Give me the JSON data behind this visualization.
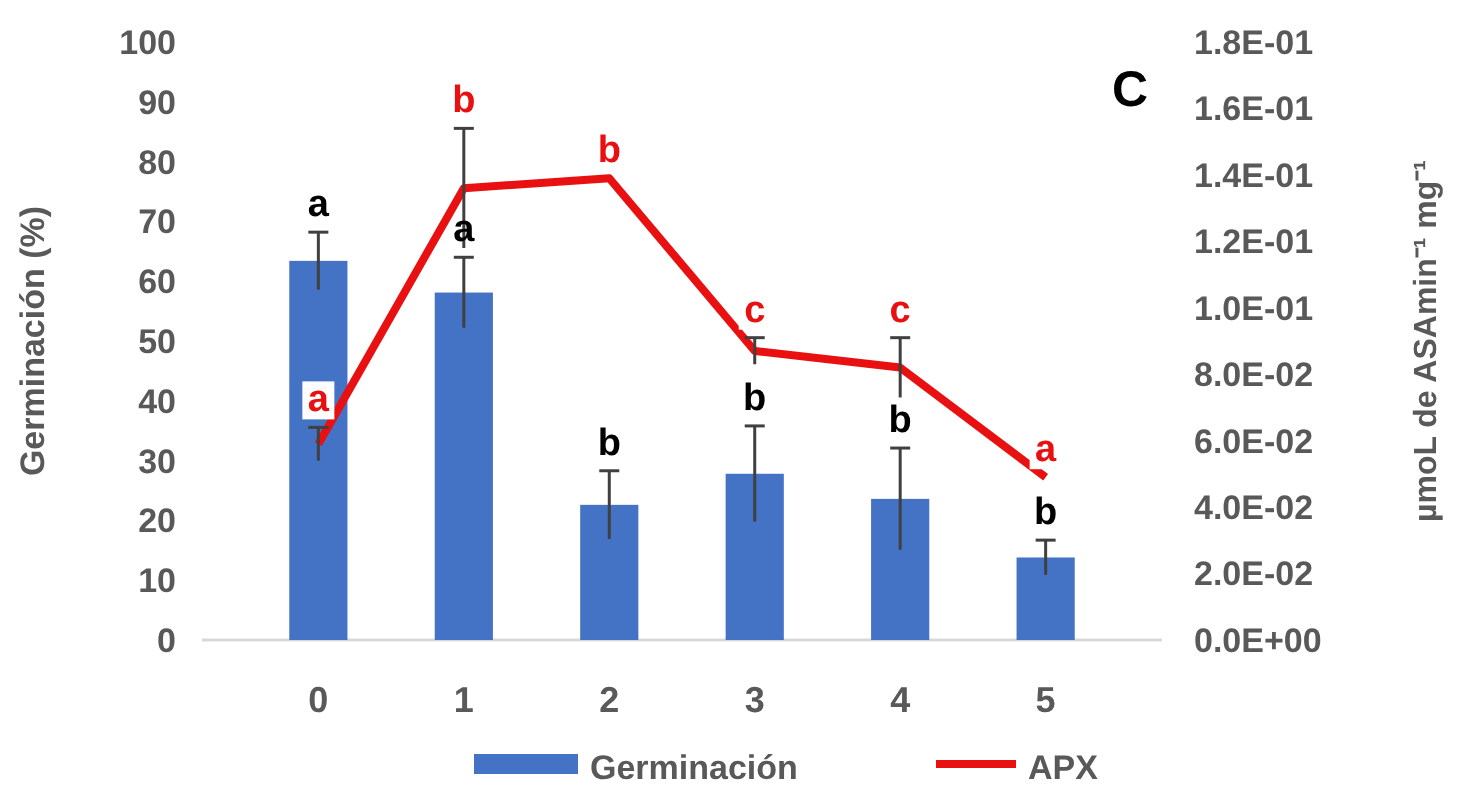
{
  "chart_data": {
    "type": "bar",
    "categories": [
      "0",
      "1",
      "2",
      "3",
      "4",
      "5"
    ],
    "ylabel": "Germinación (%)",
    "y2label": "µmoL de ASAmin⁻¹ mg⁻¹",
    "ylim": [
      0,
      100
    ],
    "yticks": [
      0,
      10,
      20,
      30,
      40,
      50,
      60,
      70,
      80,
      90,
      100
    ],
    "y2lim": [
      0,
      0.18
    ],
    "y2ticks": [
      {
        "value": 0,
        "label": "0.0E+00"
      },
      {
        "value": 0.02,
        "label": "2.0E-02"
      },
      {
        "value": 0.04,
        "label": "4.0E-02"
      },
      {
        "value": 0.06,
        "label": "6.0E-02"
      },
      {
        "value": 0.08,
        "label": "8.0E-02"
      },
      {
        "value": 0.1,
        "label": "1.0E-01"
      },
      {
        "value": 0.12,
        "label": "1.2E-01"
      },
      {
        "value": 0.14,
        "label": "1.4E-01"
      },
      {
        "value": 0.16,
        "label": "1.6E-01"
      },
      {
        "value": 0.18,
        "label": "1.8E-01"
      }
    ],
    "series": [
      {
        "name": "Germinación",
        "type": "bar",
        "color": "#4472c4",
        "values": [
          63.4,
          58.1,
          22.6,
          27.8,
          23.6,
          13.8
        ],
        "errors": [
          4.8,
          5.9,
          5.7,
          8,
          8.5,
          2.9
        ],
        "value_labels": [
          "a",
          "a",
          "b",
          "b",
          "b",
          "b"
        ]
      },
      {
        "name": "APX",
        "type": "line",
        "axis": "y2",
        "color": "#e81010",
        "values": [
          0.059,
          0.136,
          0.139,
          0.087,
          0.082,
          0.049
        ],
        "errors": [
          0.005,
          0.018,
          null,
          0.004,
          0.009,
          null
        ],
        "value_labels": [
          "a",
          "b",
          "b",
          "c",
          "c",
          "a"
        ]
      }
    ],
    "annotations": [
      "C"
    ],
    "legend": "bottom",
    "grid": false
  }
}
